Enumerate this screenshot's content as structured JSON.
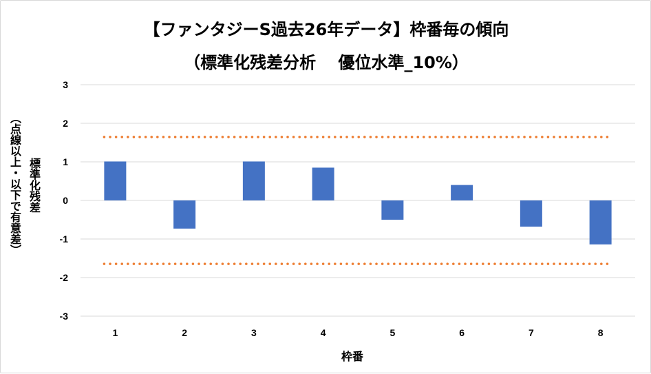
{
  "chart_data": {
    "type": "bar",
    "title_line1": "【ファンタジーS過去26年データ】枠番毎の傾向",
    "title_line2": "（標準化残差分析　 優位水準_10%）",
    "xlabel": "枠番",
    "ylabel_line1": "標準化残差",
    "ylabel_line2": "（点線以上・以下で有意差）",
    "categories": [
      "1",
      "2",
      "3",
      "4",
      "5",
      "6",
      "7",
      "8"
    ],
    "values": [
      1.01,
      -0.73,
      1.01,
      0.85,
      -0.5,
      0.4,
      -0.68,
      -1.14
    ],
    "ylim": [
      -3,
      3
    ],
    "yticks": [
      "3",
      "2",
      "1",
      "0",
      "-1",
      "-2",
      "-3"
    ],
    "threshold_upper": 1.645,
    "threshold_lower": -1.645,
    "grid": true,
    "colors": {
      "bar": "#4472C4",
      "threshold": "#ED7D31",
      "grid": "#d9d9d9"
    }
  }
}
